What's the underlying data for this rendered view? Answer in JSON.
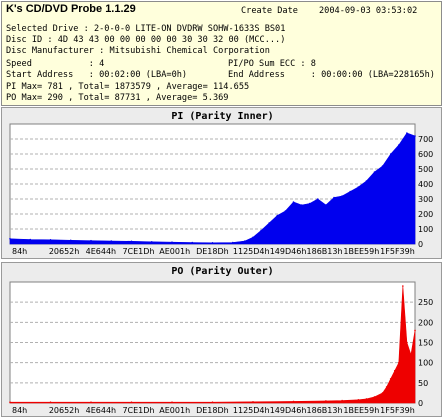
{
  "header": {
    "app_title": "K's CD/DVD Probe 1.1.29",
    "create_date_label": "Create Date",
    "create_date_value": "2004-09-03 03:53:02"
  },
  "info": {
    "selected_drive": "Selected Drive : 2-0-0-0 LITE-ON DVDRW SOHW-1633S BS01",
    "disc_id": "Disc ID : 4D 43 43 00 00 00 00 00 30 30 32 00 (MCC...)",
    "disc_manufacturer": "Disc Manufacturer : Mitsubishi Chemical Corporation",
    "speed": "Speed           : 4",
    "sum_ecc": "PI/PO Sum ECC : 8",
    "start_address": "Start Address   : 00:02:00 (LBA=0h)",
    "end_address": "End Address     : 00:00:00 (LBA=228165h)",
    "pi_stats": "PI Max= 781 , Total= 1873579 , Average= 114.655",
    "po_stats": "PO Max= 290 , Total= 87731 , Average= 5.369"
  },
  "chart_data": [
    {
      "type": "area",
      "title": "PI (Parity Inner)",
      "color": "#0000ee",
      "ylim": [
        0,
        800
      ],
      "yticks": [
        0,
        100,
        200,
        300,
        400,
        500,
        600,
        700
      ],
      "grid": true,
      "xticklabels": [
        "84h",
        "20652h",
        "4E644h",
        "7CE1Dh",
        "AE001h",
        "DE18Dh",
        "1125D4h",
        "149D46h",
        "186B13h",
        "1BEE59h",
        "1F5F39h"
      ],
      "x": [
        0.0,
        0.05,
        0.1,
        0.15,
        0.2,
        0.25,
        0.3,
        0.35,
        0.4,
        0.45,
        0.5,
        0.55,
        0.58,
        0.6,
        0.62,
        0.64,
        0.66,
        0.68,
        0.7,
        0.72,
        0.74,
        0.76,
        0.78,
        0.8,
        0.82,
        0.84,
        0.86,
        0.88,
        0.9,
        0.92,
        0.94,
        0.96,
        0.98,
        1.0
      ],
      "values": [
        35,
        30,
        28,
        25,
        22,
        20,
        18,
        15,
        12,
        10,
        8,
        10,
        20,
        45,
        90,
        140,
        190,
        220,
        280,
        260,
        270,
        300,
        260,
        310,
        320,
        350,
        380,
        420,
        480,
        520,
        600,
        660,
        740,
        720
      ]
    },
    {
      "type": "area",
      "title": "PO (Parity Outer)",
      "color": "#ee0000",
      "ylim": [
        0,
        300
      ],
      "yticks": [
        0,
        50,
        100,
        150,
        200,
        250
      ],
      "grid": true,
      "xticklabels": [
        "84h",
        "20652h",
        "4E644h",
        "7CE1Dh",
        "AE001h",
        "DE18Dh",
        "1125D4h",
        "149D46h",
        "186B13h",
        "1BEE59h",
        "1F5F39h"
      ],
      "x": [
        0.0,
        0.1,
        0.2,
        0.3,
        0.4,
        0.5,
        0.6,
        0.7,
        0.78,
        0.82,
        0.86,
        0.88,
        0.9,
        0.92,
        0.93,
        0.94,
        0.95,
        0.96,
        0.97,
        0.98,
        0.99,
        1.0
      ],
      "values": [
        2,
        2,
        2,
        2,
        2,
        2,
        3,
        4,
        5,
        6,
        8,
        10,
        15,
        25,
        40,
        60,
        80,
        100,
        290,
        150,
        120,
        180
      ]
    }
  ]
}
